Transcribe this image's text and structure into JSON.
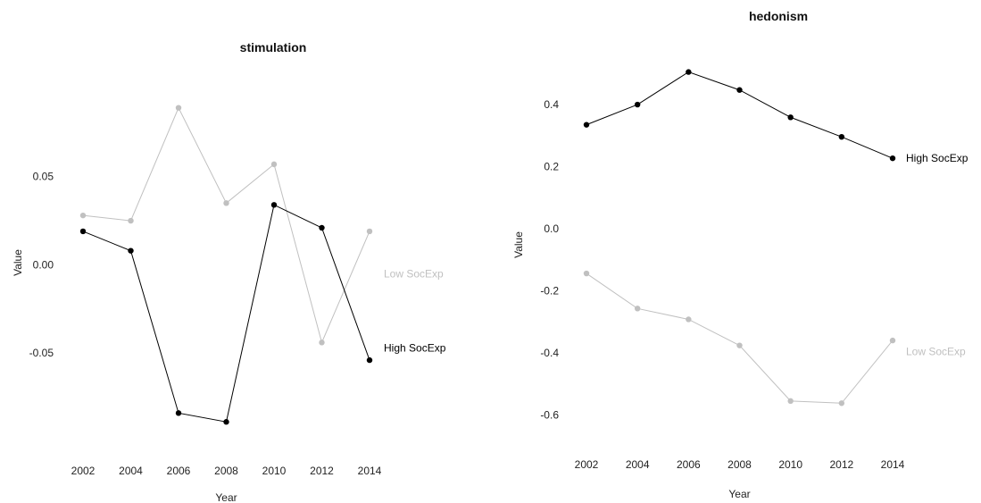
{
  "chart_data": [
    {
      "type": "line",
      "title": "stimulation",
      "xlabel": "Year",
      "ylabel": "Value",
      "x": [
        2002,
        2004,
        2006,
        2008,
        2010,
        2012,
        2014
      ],
      "ylim": [
        -0.098,
        0.102
      ],
      "yticks": [
        -0.05,
        0.0,
        0.05
      ],
      "ytick_labels": [
        "-0.05",
        "0.00",
        "0.05"
      ],
      "grid": false,
      "legend": "inline labels at right end of each series",
      "series": [
        {
          "name": "Low SocExp",
          "color": "#c0c0c0",
          "values": [
            0.028,
            0.025,
            0.089,
            0.035,
            0.057,
            -0.044,
            0.019
          ],
          "label_value": -0.005
        },
        {
          "name": "High SocExp",
          "color": "#000000",
          "values": [
            0.019,
            0.008,
            -0.084,
            -0.089,
            0.034,
            0.021,
            -0.054
          ],
          "label_value": -0.047
        }
      ]
    },
    {
      "type": "line",
      "title": "hedonism",
      "xlabel": "Year",
      "ylabel": "Value",
      "x": [
        2002,
        2004,
        2006,
        2008,
        2010,
        2012,
        2014
      ],
      "ylim": [
        -0.685,
        0.57
      ],
      "yticks": [
        -0.6,
        -0.4,
        -0.2,
        0.0,
        0.2,
        0.4
      ],
      "ytick_labels": [
        "-0.6",
        "-0.4",
        "-0.2",
        "0.0",
        "0.2",
        "0.4"
      ],
      "grid": false,
      "legend": "inline labels at right end of each series",
      "series": [
        {
          "name": "High SocExp",
          "color": "#000000",
          "values": [
            0.335,
            0.4,
            0.505,
            0.447,
            0.359,
            0.296,
            0.227
          ],
          "label_value": 0.227
        },
        {
          "name": "Low SocExp",
          "color": "#c0c0c0",
          "values": [
            -0.144,
            -0.257,
            -0.292,
            -0.376,
            -0.555,
            -0.562,
            -0.36
          ],
          "label_value": -0.395
        }
      ]
    }
  ]
}
